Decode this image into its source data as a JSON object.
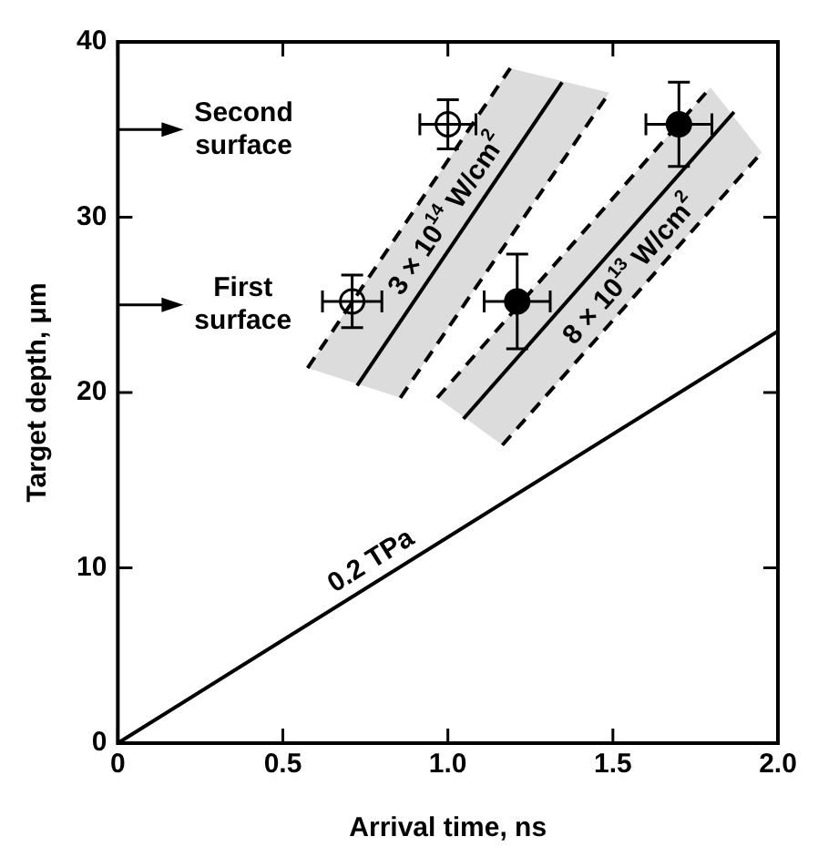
{
  "chart_data": {
    "type": "line",
    "xlabel": "Arrival time, ns",
    "ylabel": "Target depth, μm",
    "xlim": [
      0,
      2.0
    ],
    "xticks": [
      0,
      0.5,
      {
        "value": 1,
        "label": "1.0"
      },
      1.5,
      {
        "value": 2,
        "label": "2.0"
      }
    ],
    "ylim": [
      0,
      40
    ],
    "yticks": [
      0,
      10,
      20,
      30,
      40
    ],
    "grid": false,
    "legend": false,
    "series": [
      {
        "type": "line",
        "color": "#000000",
        "line_style": "solid",
        "marker": "none",
        "x": [
          0,
          2.0
        ],
        "values": [
          0,
          23.5
        ]
      },
      {
        "type": "line",
        "color": "#000000",
        "line_style": "dashed",
        "marker": "none",
        "x": [
          0.575,
          1.189
        ],
        "values": [
          21.4,
          38.5
        ]
      },
      {
        "type": "line",
        "color": "#000000",
        "line_style": "solid",
        "marker": "none",
        "x": [
          0.725,
          1.346
        ],
        "values": [
          20.4,
          37.7
        ]
      },
      {
        "type": "line",
        "color": "#000000",
        "line_style": "dashed",
        "marker": "none",
        "x": [
          0.856,
          1.489
        ],
        "values": [
          19.7,
          37.1
        ]
      },
      {
        "type": "line",
        "color": "#000000",
        "line_style": "dashed",
        "marker": "none",
        "x": [
          0.968,
          1.796
        ],
        "values": [
          19.7,
          37.4
        ]
      },
      {
        "type": "line",
        "color": "#000000",
        "line_style": "solid",
        "marker": "none",
        "x": [
          1.047,
          1.867
        ],
        "values": [
          18.5,
          36.0
        ]
      },
      {
        "type": "line",
        "color": "#000000",
        "line_style": "dashed",
        "marker": "none",
        "x": [
          1.165,
          1.951
        ],
        "values": [
          17.0,
          33.7
        ]
      },
      {
        "type": "scatter",
        "color": "#ffffff",
        "marker": "circle",
        "x": [
          0.71,
          1.0
        ],
        "values": [
          25.2,
          35.3
        ],
        "errors": [
          1.5,
          1.4
        ],
        "xerrors": [
          0.09,
          0.085
        ]
      },
      {
        "type": "scatter",
        "color": "#000000",
        "marker": "circle",
        "x": [
          1.21,
          1.7
        ],
        "values": [
          25.2,
          35.3
        ],
        "errors": [
          2.7,
          2.4
        ],
        "xerrors": [
          0.1,
          0.1
        ]
      }
    ],
    "ref_lines": [
      {
        "axis": "y",
        "value": 35,
        "label": "Second surface"
      },
      {
        "axis": "y",
        "value": 25,
        "label": "First surface"
      }
    ],
    "annotations": [
      {
        "text": "3 × 10$^{14}$ W/cm$^{2}$",
        "x": 1.05,
        "y": 29.5
      },
      {
        "text": "8 × 10$^{13}$ W/cm$^{2}$",
        "x": 1.6,
        "y": 26.2
      },
      {
        "text": "0.2 TPa",
        "x": 0.8,
        "y": 9.4
      }
    ]
  }
}
